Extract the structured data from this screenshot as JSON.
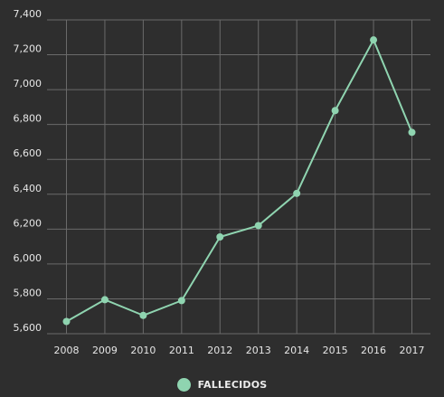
{
  "chart_data": {
    "type": "line",
    "x": [
      "2008",
      "2009",
      "2010",
      "2011",
      "2012",
      "2013",
      "2014",
      "2015",
      "2016",
      "2017"
    ],
    "series": [
      {
        "name": "FALLECIDOS",
        "values": [
          5670,
          5795,
          5705,
          5790,
          6155,
          6220,
          6405,
          6880,
          7285,
          6755
        ],
        "color": "#8fd4b0"
      }
    ],
    "yticks": [
      "5,600",
      "5,800",
      "6,000",
      "6,200",
      "6,400",
      "6,600",
      "6,800",
      "7,000",
      "7,200",
      "7,400"
    ],
    "ylim": [
      5600,
      7400
    ],
    "grid": true,
    "legend_position": "bottom",
    "colors": {
      "background": "#2e2e2e",
      "grid": "#6a6a6a",
      "text": "#e6e6e6"
    }
  }
}
